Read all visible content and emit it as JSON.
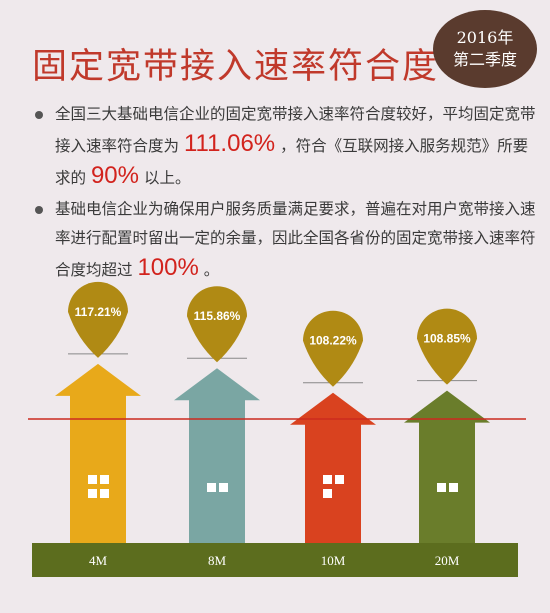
{
  "header": {
    "title": "固定宽带接入速率符合度",
    "badge_year": "2016年",
    "badge_period": "第二季度"
  },
  "bullets": [
    {
      "pre": "全国三大基础电信企业的固定宽带接入速率符合度较好，平均固定宽带接入速率符合度为",
      "hl1": "111.06%",
      "mid": "，符合《互联网接入服务规范》所要求的",
      "hl2": "90%",
      "post": "以上。"
    },
    {
      "pre": "基础电信企业为确保用户服务质量满足要求，普遍在对用户宽带接入速率进行配置时留出一定的余量，因此全国各省份的固定宽带接入速率符合度均超过",
      "hl1": "100%",
      "post": "。"
    }
  ],
  "chart_data": {
    "type": "bar",
    "categories": [
      "4M",
      "8M",
      "10M",
      "20M"
    ],
    "values": [
      117.21,
      115.86,
      108.22,
      108.85
    ],
    "data_labels": [
      "117.21%",
      "115.86%",
      "108.22%",
      "108.85%"
    ],
    "reference_value": 100,
    "colors": {
      "bars": [
        "#e8a91a",
        "#7aa6a3",
        "#d9421f",
        "#6a7d2b"
      ],
      "pins": "#b08a14",
      "reference_line": "#cc2a1f",
      "baseline": "#5c6d1e"
    }
  }
}
